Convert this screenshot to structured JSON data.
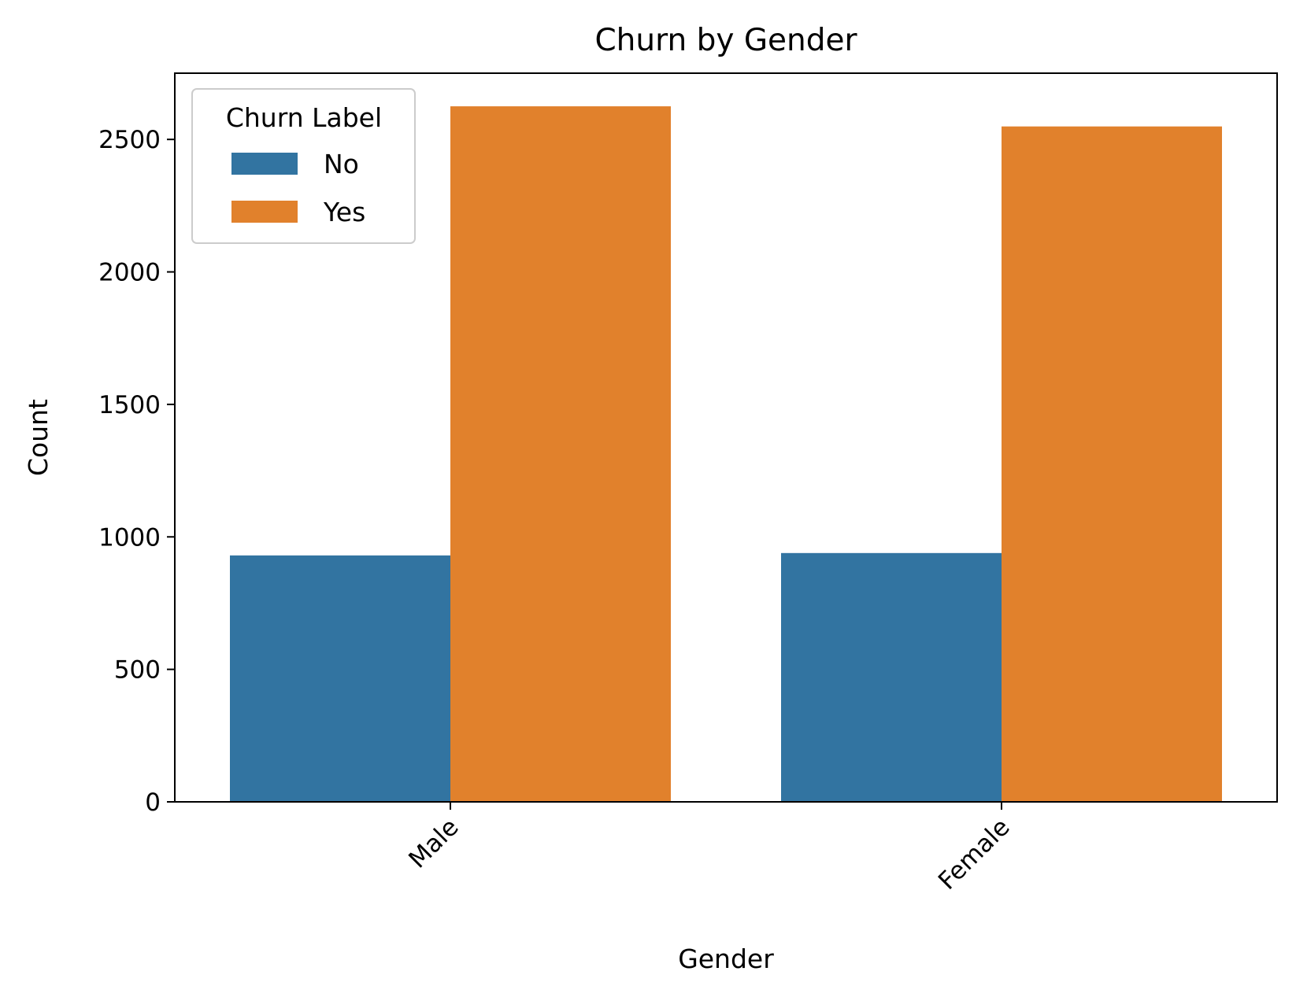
{
  "chart_data": {
    "type": "bar",
    "title": "Churn by Gender",
    "xlabel": "Gender",
    "ylabel": "Count",
    "categories": [
      "Male",
      "Female"
    ],
    "series": [
      {
        "name": "No",
        "values": [
          930,
          939
        ],
        "color": "#3274a1"
      },
      {
        "name": "Yes",
        "values": [
          2625,
          2549
        ],
        "color": "#e1812c"
      }
    ],
    "ylim": [
      0,
      2750
    ],
    "yticks": [
      0,
      500,
      1000,
      1500,
      2000,
      2500
    ],
    "legend": {
      "title": "Churn Label",
      "position": "top-left"
    },
    "grid": false
  }
}
